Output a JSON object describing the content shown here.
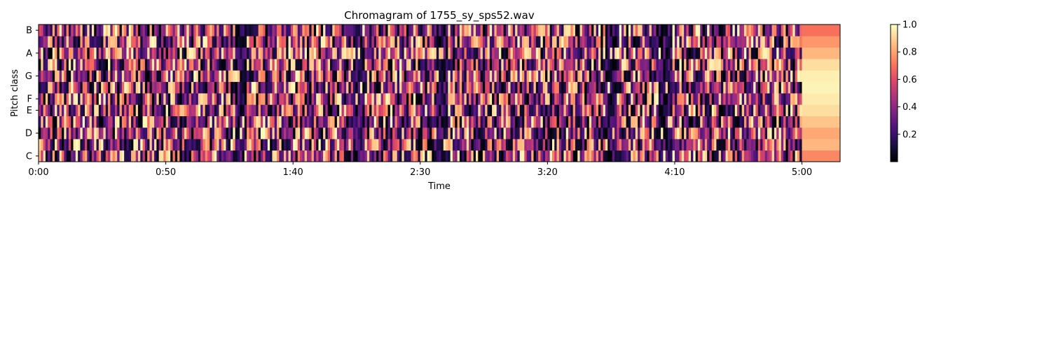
{
  "chart_data": {
    "type": "heatmap",
    "title": "Chromagram of 1755_sy_sps52.wav",
    "xlabel": "Time",
    "ylabel": "Pitch class",
    "x_unit": "seconds",
    "x_range": [
      0,
      315
    ],
    "x_ticks": [
      {
        "value": 0,
        "label": "0:00"
      },
      {
        "value": 50,
        "label": "0:50"
      },
      {
        "value": 100,
        "label": "1:40"
      },
      {
        "value": 150,
        "label": "2:30"
      },
      {
        "value": 200,
        "label": "3:20"
      },
      {
        "value": 250,
        "label": "4:10"
      },
      {
        "value": 300,
        "label": "5:00"
      }
    ],
    "pitch_classes": [
      "C",
      "C#",
      "D",
      "D#",
      "E",
      "F",
      "F#",
      "G",
      "G#",
      "A",
      "A#",
      "B"
    ],
    "y_tick_labels": [
      {
        "pitch": "C",
        "label": "C"
      },
      {
        "pitch": "D",
        "label": "D"
      },
      {
        "pitch": "E",
        "label": "E"
      },
      {
        "pitch": "F",
        "label": "F"
      },
      {
        "pitch": "G",
        "label": "G"
      },
      {
        "pitch": "A",
        "label": "A"
      },
      {
        "pitch": "B",
        "label": "B"
      }
    ],
    "colormap": "magma",
    "colorbar": {
      "range": [
        0.0,
        1.0
      ],
      "ticks": [
        {
          "value": 0.2,
          "label": "0.2"
        },
        {
          "value": 0.4,
          "label": "0.4"
        },
        {
          "value": 0.6,
          "label": "0.6"
        },
        {
          "value": 0.8,
          "label": "0.8"
        },
        {
          "value": 1.0,
          "label": "1.0"
        }
      ]
    },
    "trailing_segment": {
      "start": 300,
      "end": 315,
      "values": [
        0.75,
        0.85,
        0.82,
        0.88,
        0.93,
        0.96,
        0.98,
        0.97,
        0.93,
        0.85,
        0.78,
        0.7
      ]
    }
  }
}
